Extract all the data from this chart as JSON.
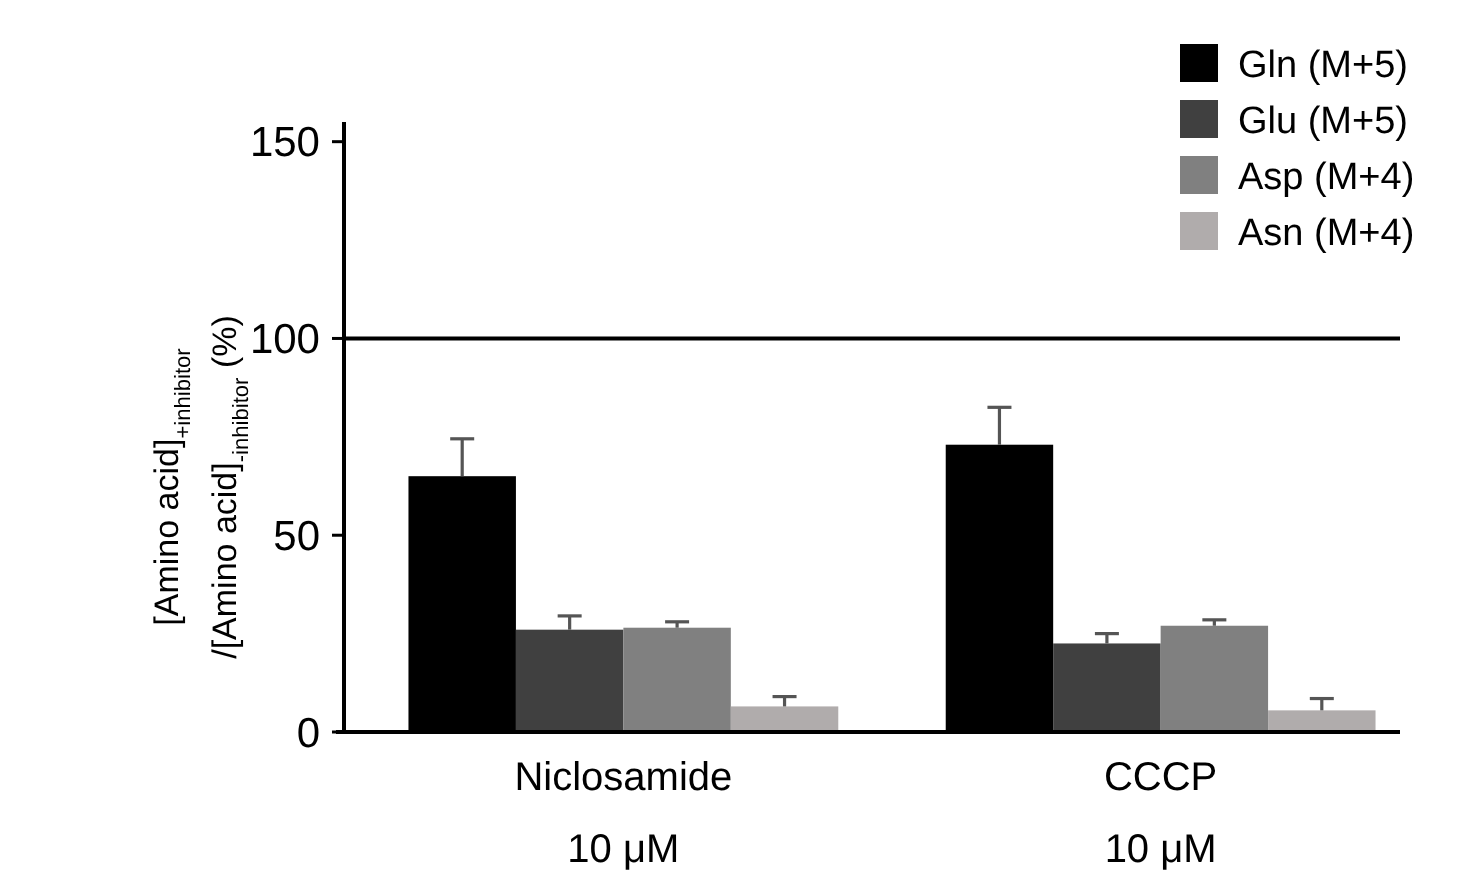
{
  "chart_data": {
    "type": "bar",
    "ylabel": "[Amino acid]$_{+inhibitor}$\n/[Amino acid]$_{-inhibitor}$ (%)",
    "categories": [
      "Niclosamide\n10 μM",
      "CCCP\n10 μM"
    ],
    "series": [
      {
        "name": "Gln (M+5)",
        "color": "#000000",
        "values": [
          65,
          73
        ],
        "errors": [
          [
            65,
            74.5
          ],
          [
            73,
            82.5
          ]
        ]
      },
      {
        "name": "Glu (M+5)",
        "color": "#404040",
        "values": [
          26,
          22.5
        ],
        "errors": [
          [
            26,
            29.5
          ],
          [
            22.5,
            25
          ]
        ]
      },
      {
        "name": "Asp (M+4)",
        "color": "#808080",
        "values": [
          26.5,
          27
        ],
        "errors": [
          [
            26.5,
            28
          ],
          [
            27,
            28.5
          ]
        ]
      },
      {
        "name": "Asn (M+4)",
        "color": "#b0acac",
        "values": [
          6.5,
          5.5
        ],
        "errors": [
          [
            6.5,
            9
          ],
          [
            5.5,
            8.5
          ]
        ]
      }
    ],
    "ylim": [
      0,
      155
    ],
    "yticks": [
      0,
      50,
      100,
      150
    ],
    "grid": false,
    "legend": "top right",
    "ref_lines": [
      {
        "axis": "y",
        "value": 100,
        "color": "#000000"
      }
    ]
  }
}
